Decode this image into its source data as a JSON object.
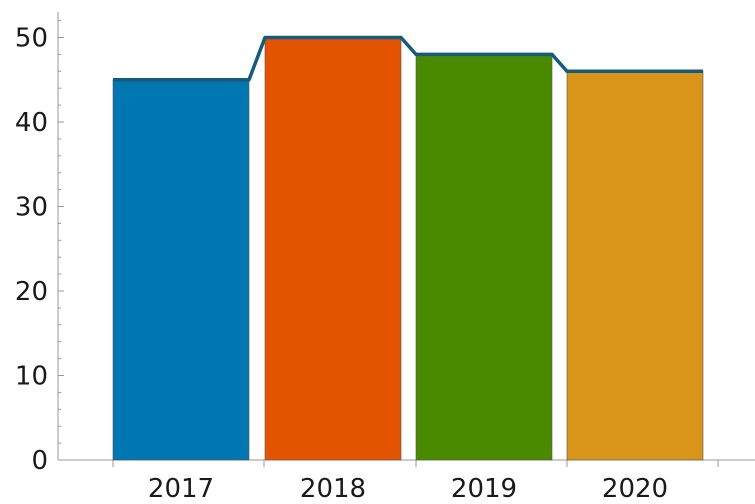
{
  "chart_data": {
    "type": "bar",
    "categories": [
      "2017",
      "2018",
      "2019",
      "2020"
    ],
    "values": [
      45,
      50,
      48,
      46
    ],
    "bar_colors": [
      "#0077b0",
      "#e35300",
      "#4a8a00",
      "#d8951a"
    ],
    "outline_color": "#165a7e",
    "axis_color": "#999999",
    "ylim": [
      0,
      52
    ],
    "yticks": [
      "0",
      "10",
      "20",
      "30",
      "40",
      "50"
    ],
    "title": "",
    "xlabel": "",
    "ylabel": "",
    "grid": false,
    "legend": "none"
  }
}
